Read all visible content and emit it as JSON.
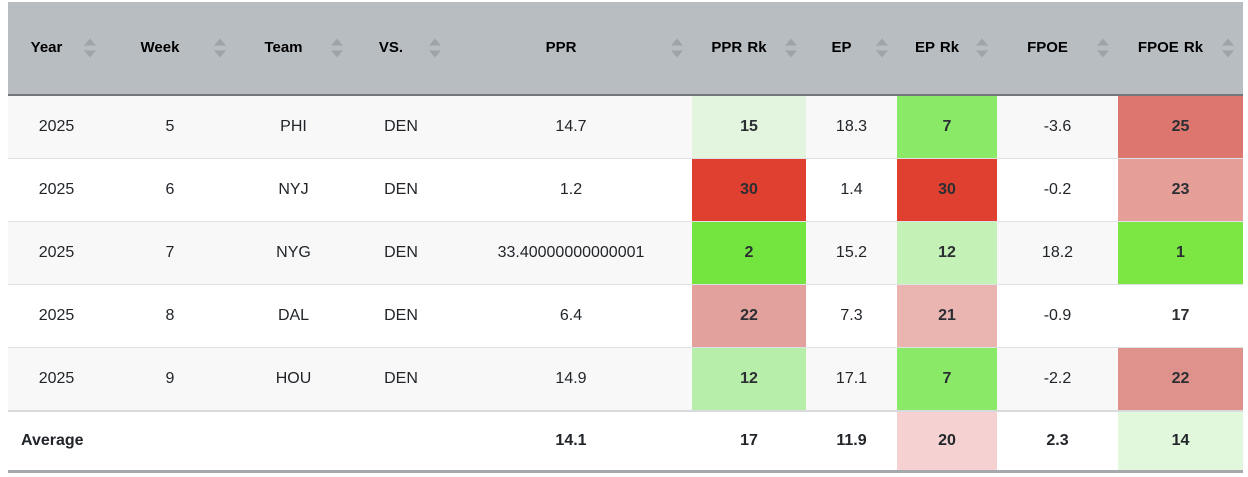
{
  "table": {
    "columns": [
      {
        "key": "year",
        "label": "Year"
      },
      {
        "key": "week",
        "label": "Week"
      },
      {
        "key": "team",
        "label": "Team"
      },
      {
        "key": "vs",
        "label": "VS."
      },
      {
        "key": "ppr",
        "label": "PPR"
      },
      {
        "key": "ppr_rk",
        "label": "PPR Rk"
      },
      {
        "key": "ep",
        "label": "EP"
      },
      {
        "key": "ep_rk",
        "label": "EP Rk"
      },
      {
        "key": "fpoe",
        "label": "FPOE"
      },
      {
        "key": "fpoe_rk",
        "label": "FPOE Rk"
      }
    ],
    "rank_column_indexes": [
      5,
      7,
      9
    ],
    "rows": [
      {
        "cells": [
          "2025",
          "5",
          "PHI",
          "DEN",
          "14.7",
          "15",
          "18.3",
          "7",
          "-3.6",
          "25"
        ],
        "cell_bg": [
          "",
          "",
          "",
          "",
          "",
          "#e4f5df",
          "",
          "#8ae967",
          "",
          "#dc766e"
        ]
      },
      {
        "cells": [
          "2025",
          "6",
          "NYJ",
          "DEN",
          "1.2",
          "30",
          "1.4",
          "30",
          "-0.2",
          "23"
        ],
        "cell_bg": [
          "",
          "",
          "",
          "",
          "",
          "#e04030",
          "",
          "#e04030",
          "",
          "#e69e99"
        ]
      },
      {
        "cells": [
          "2025",
          "7",
          "NYG",
          "DEN",
          "33.40000000000001",
          "2",
          "15.2",
          "12",
          "18.2",
          "1"
        ],
        "cell_bg": [
          "",
          "",
          "",
          "",
          "",
          "#74e53e",
          "",
          "#c3f1b6",
          "",
          "#7ce642"
        ]
      },
      {
        "cells": [
          "2025",
          "8",
          "DAL",
          "DEN",
          "6.4",
          "22",
          "7.3",
          "21",
          "-0.9",
          "17"
        ],
        "cell_bg": [
          "",
          "",
          "",
          "",
          "",
          "#e2a19c",
          "",
          "#eab5b1",
          "",
          ""
        ]
      },
      {
        "cells": [
          "2025",
          "9",
          "HOU",
          "DEN",
          "14.9",
          "12",
          "17.1",
          "7",
          "-2.2",
          "22"
        ],
        "cell_bg": [
          "",
          "",
          "",
          "",
          "",
          "#b6eeaa",
          "",
          "#8ae967",
          "",
          "#df928c"
        ]
      }
    ],
    "footer": {
      "label": "Average",
      "cells": [
        "14.1",
        "17",
        "11.9",
        "20",
        "2.3",
        "14"
      ],
      "cell_bg": [
        "",
        "",
        "",
        "#f5d2d1",
        "",
        "#e2f8dc"
      ]
    }
  },
  "colors": {
    "header_bg": "#b8bdc2",
    "header_separator": "#73777b",
    "row_alt_bg": "#f8f8f8",
    "row_border": "#dee2e6",
    "bottom_border": "#a6a9ad",
    "sort_arrow": "#9ea4a9",
    "rank_green_strong": "#74e53e",
    "rank_green_mid": "#8ae967",
    "rank_green_light": "#b6eeaa",
    "rank_green_faint": "#e4f5df",
    "rank_red_strong": "#e04030",
    "rank_red_mid": "#dc766e",
    "rank_red_light": "#e69e99",
    "rank_red_faint": "#f5d2d1"
  }
}
